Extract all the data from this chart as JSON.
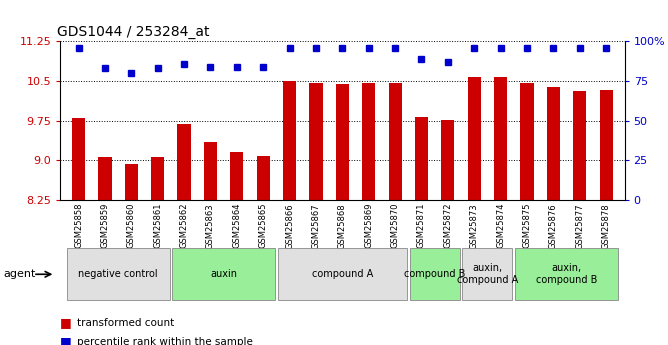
{
  "title": "GDS1044 / 253284_at",
  "samples": [
    "GSM25858",
    "GSM25859",
    "GSM25860",
    "GSM25861",
    "GSM25862",
    "GSM25863",
    "GSM25864",
    "GSM25865",
    "GSM25866",
    "GSM25867",
    "GSM25868",
    "GSM25869",
    "GSM25870",
    "GSM25871",
    "GSM25872",
    "GSM25873",
    "GSM25874",
    "GSM25875",
    "GSM25876",
    "GSM25877",
    "GSM25878"
  ],
  "bar_values": [
    9.8,
    9.06,
    8.93,
    9.06,
    9.68,
    9.35,
    9.15,
    9.08,
    10.5,
    10.47,
    10.45,
    10.46,
    10.47,
    9.82,
    9.76,
    10.57,
    10.58,
    10.47,
    10.38,
    10.32,
    10.33
  ],
  "percentile_values": [
    96,
    83,
    80,
    83,
    86,
    84,
    84,
    84,
    96,
    96,
    96,
    96,
    96,
    89,
    87,
    96,
    96,
    96,
    96,
    96,
    96
  ],
  "bar_color": "#cc0000",
  "dot_color": "#0000cc",
  "ylim_left": [
    8.25,
    11.25
  ],
  "yticks_left": [
    8.25,
    9.0,
    9.75,
    10.5,
    11.25
  ],
  "yticks_right": [
    0,
    25,
    50,
    75,
    100
  ],
  "ylim_right": [
    0,
    100
  ],
  "groups": [
    {
      "label": "negative control",
      "start": 0,
      "end": 3,
      "color": "#e0e0e0"
    },
    {
      "label": "auxin",
      "start": 4,
      "end": 7,
      "color": "#99ee99"
    },
    {
      "label": "compound A",
      "start": 8,
      "end": 12,
      "color": "#e0e0e0"
    },
    {
      "label": "compound B",
      "start": 13,
      "end": 14,
      "color": "#99ee99"
    },
    {
      "label": "auxin,\ncompound A",
      "start": 15,
      "end": 16,
      "color": "#e0e0e0"
    },
    {
      "label": "auxin,\ncompound B",
      "start": 17,
      "end": 20,
      "color": "#99ee99"
    }
  ],
  "background_color": "#ffffff",
  "tick_label_color": "#e0e0e0"
}
